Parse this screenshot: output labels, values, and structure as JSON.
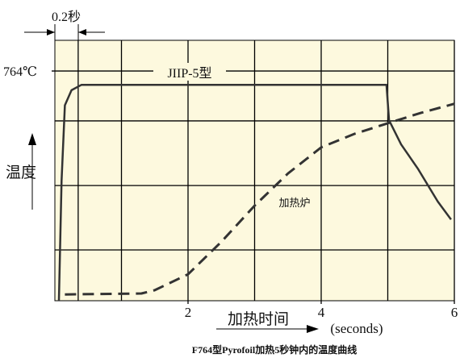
{
  "chart_data": {
    "type": "line",
    "title": "F764型Pyrofoil加热5秒钟内的温度曲线",
    "y_label": "温度",
    "x_label": "加热时间",
    "x_unit": "(seconds)",
    "annotations": [
      "0.2秒",
      "JIIP-5型",
      "加热炉"
    ],
    "xlim": [
      0,
      6
    ],
    "xticks": [
      2,
      4,
      6
    ],
    "ylim": [
      0,
      866
    ],
    "yticks": [
      {
        "value": 764,
        "label": "764℃"
      }
    ],
    "xgrid": [
      0.35,
      1,
      3,
      5
    ],
    "ygrid": [
      169,
      383,
      598
    ],
    "series": [
      {
        "name": "JIIP-5型",
        "color": "#333333",
        "dash": false,
        "x": [
          0.06,
          0.1,
          0.15,
          0.25,
          0.4,
          4.98,
          5.02,
          5.2,
          5.45,
          5.75,
          5.95
        ],
        "values": [
          0,
          400,
          650,
          700,
          718,
          718,
          600,
          520,
          440,
          330,
          270
        ]
      },
      {
        "name": "加热炉",
        "color": "#333333",
        "dash": true,
        "x": [
          0.15,
          1.3,
          1.5,
          2,
          2.5,
          3,
          3.5,
          4,
          4.5,
          5,
          5.5,
          6
        ],
        "values": [
          21,
          24,
          35,
          88,
          196,
          316,
          423,
          510,
          555,
          590,
          625,
          655
        ]
      }
    ]
  }
}
